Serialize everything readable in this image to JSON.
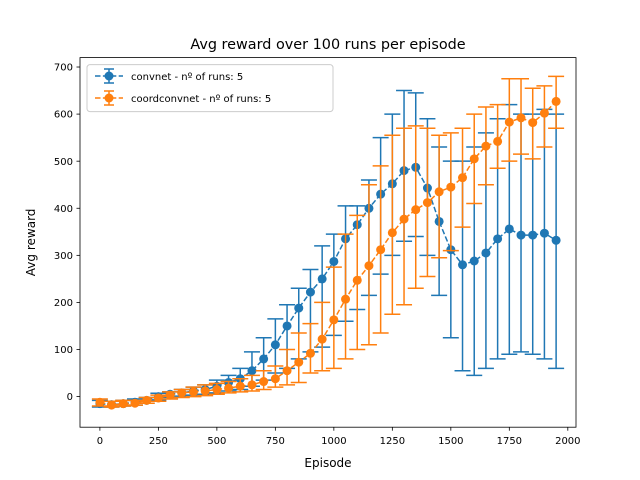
{
  "chart_data": {
    "type": "line",
    "title": "Avg reward over 100 runs per episode",
    "xlabel": "Episode",
    "ylabel": "Avg reward",
    "xlim": [
      -85,
      2035
    ],
    "ylim": [
      -65,
      720
    ],
    "xticks": [
      0,
      250,
      500,
      750,
      1000,
      1250,
      1500,
      1750,
      2000
    ],
    "yticks": [
      0,
      100,
      200,
      300,
      400,
      500,
      600,
      700
    ],
    "grid": false,
    "legend_position": "top-left",
    "x": [
      0,
      50,
      100,
      150,
      200,
      250,
      300,
      350,
      400,
      450,
      500,
      550,
      600,
      650,
      700,
      750,
      800,
      850,
      900,
      950,
      1000,
      1050,
      1100,
      1150,
      1200,
      1250,
      1300,
      1350,
      1400,
      1450,
      1500,
      1550,
      1600,
      1650,
      1700,
      1750,
      1800,
      1850,
      1900,
      1950
    ],
    "series": [
      {
        "name": "convnet - nº of runs: 5",
        "color": "#1f77b4",
        "values": [
          -15,
          -17,
          -15,
          -12,
          -8,
          0,
          5,
          8,
          12,
          15,
          22,
          30,
          38,
          55,
          80,
          110,
          150,
          188,
          222,
          250,
          287,
          335,
          365,
          400,
          430,
          452,
          480,
          487,
          443,
          372,
          312,
          280,
          288,
          305,
          335,
          356,
          343,
          343,
          347,
          332
        ],
        "err_low": [
          -22,
          -22,
          -20,
          -18,
          -14,
          -7,
          -2,
          1,
          3,
          5,
          8,
          12,
          15,
          22,
          35,
          50,
          60,
          80,
          95,
          105,
          130,
          160,
          185,
          215,
          260,
          300,
          330,
          340,
          300,
          215,
          125,
          55,
          45,
          60,
          80,
          90,
          95,
          90,
          80,
          60
        ],
        "err_high": [
          -8,
          -10,
          -8,
          -5,
          -2,
          7,
          10,
          15,
          20,
          25,
          35,
          45,
          60,
          95,
          125,
          165,
          195,
          230,
          270,
          320,
          345,
          405,
          405,
          460,
          550,
          600,
          650,
          645,
          590,
          530,
          500,
          500,
          530,
          560,
          590,
          620,
          600,
          600,
          610,
          600
        ]
      },
      {
        "name": "coordconvnet - nº of runs: 5",
        "color": "#ff7f0e",
        "values": [
          -12,
          -18,
          -15,
          -14,
          -8,
          -3,
          3,
          8,
          10,
          12,
          15,
          18,
          22,
          25,
          32,
          38,
          55,
          73,
          92,
          122,
          163,
          207,
          247,
          278,
          312,
          348,
          377,
          397,
          412,
          435,
          445,
          465,
          505,
          532,
          542,
          583,
          592,
          582,
          602,
          627
        ],
        "err_low": [
          -20,
          -22,
          -20,
          -18,
          -14,
          -10,
          -5,
          -2,
          0,
          2,
          5,
          8,
          10,
          12,
          15,
          20,
          25,
          30,
          50,
          55,
          60,
          80,
          100,
          110,
          135,
          175,
          195,
          230,
          255,
          295,
          310,
          360,
          410,
          450,
          485,
          500,
          515,
          505,
          530,
          570
        ],
        "err_high": [
          -5,
          -10,
          -8,
          -8,
          -2,
          3,
          10,
          15,
          20,
          25,
          28,
          32,
          38,
          45,
          55,
          65,
          100,
          135,
          155,
          200,
          275,
          345,
          385,
          450,
          490,
          555,
          570,
          575,
          570,
          555,
          560,
          570,
          600,
          615,
          620,
          675,
          675,
          655,
          660,
          680
        ]
      }
    ]
  }
}
